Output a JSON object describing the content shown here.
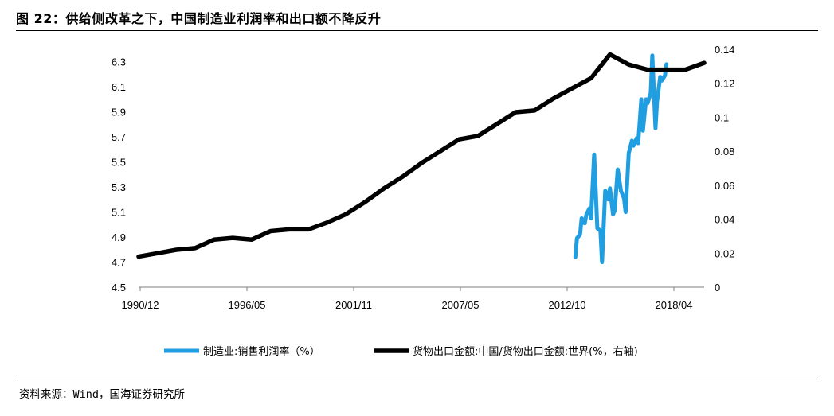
{
  "header": {
    "title": "图 22：供给侧改革之下，中国制造业利润率和出口额不降反升"
  },
  "footer": {
    "source": "资料来源：Wind，国海证券研究所"
  },
  "colors": {
    "series_profit": "#1f9ee1",
    "series_export": "#000000",
    "axis": "#7f7f7f"
  },
  "chart_data": {
    "type": "line",
    "x_tick_labels": [
      "1990/12",
      "1996/05",
      "2001/11",
      "2007/05",
      "2012/10",
      "2018/04"
    ],
    "x_range": [
      "1990-12",
      "2020-12"
    ],
    "y_left": {
      "ticks": [
        "4.5",
        "4.7",
        "4.9",
        "5.1",
        "5.3",
        "5.5",
        "5.7",
        "5.9",
        "6.1",
        "6.3"
      ],
      "range": [
        4.5,
        6.4
      ]
    },
    "y_right": {
      "ticks": [
        "0",
        "0.02",
        "0.04",
        "0.06",
        "0.08",
        "0.1",
        "0.12",
        "0.14"
      ],
      "range": [
        0,
        0.14
      ]
    },
    "grid": false,
    "legend_position": "bottom",
    "series": [
      {
        "name": "制造业:销售利润率（%）",
        "axis": "left",
        "x": [
          "2014-02",
          "2014-03",
          "2014-05",
          "2014-06",
          "2014-08",
          "2014-09",
          "2014-11",
          "2014-12",
          "2015-02",
          "2015-04",
          "2015-06",
          "2015-07",
          "2015-09",
          "2015-11",
          "2015-12",
          "2016-02",
          "2016-03",
          "2016-05",
          "2016-07",
          "2016-09",
          "2016-10",
          "2016-12",
          "2017-02",
          "2017-03",
          "2017-05",
          "2017-06",
          "2017-08",
          "2017-09",
          "2017-11",
          "2017-12",
          "2018-02",
          "2018-03",
          "2018-05",
          "2018-06",
          "2018-08",
          "2018-09",
          "2018-11",
          "2018-12"
        ],
        "y": [
          4.74,
          4.89,
          4.92,
          5.05,
          5.01,
          5.08,
          5.13,
          5.05,
          5.56,
          4.97,
          4.95,
          4.7,
          5.27,
          5.2,
          5.29,
          5.08,
          5.11,
          5.44,
          5.27,
          5.21,
          5.1,
          5.57,
          5.67,
          5.63,
          5.69,
          5.65,
          6.0,
          5.75,
          6.0,
          5.97,
          6.05,
          6.35,
          5.77,
          5.98,
          6.18,
          6.15,
          6.19,
          6.28
        ]
      },
      {
        "name": "货物出口金额:中国/货物出口金额:世界(%，右轴)",
        "axis": "right",
        "x": [
          "1990-12",
          "1991-12",
          "1992-12",
          "1993-12",
          "1994-12",
          "1995-12",
          "1996-12",
          "1997-12",
          "1998-12",
          "1999-12",
          "2000-12",
          "2001-12",
          "2002-12",
          "2003-12",
          "2004-12",
          "2005-12",
          "2006-12",
          "2007-12",
          "2008-12",
          "2009-12",
          "2010-12",
          "2011-12",
          "2012-12",
          "2013-12",
          "2014-12",
          "2015-12",
          "2016-12",
          "2017-12",
          "2018-12",
          "2019-12",
          "2020-12"
        ],
        "y": [
          0.018,
          0.02,
          0.022,
          0.023,
          0.028,
          0.029,
          0.028,
          0.033,
          0.034,
          0.034,
          0.038,
          0.043,
          0.05,
          0.058,
          0.065,
          0.073,
          0.08,
          0.087,
          0.089,
          0.096,
          0.103,
          0.104,
          0.111,
          0.117,
          0.123,
          0.137,
          0.131,
          0.128,
          0.128,
          0.128,
          0.132
        ]
      }
    ]
  }
}
